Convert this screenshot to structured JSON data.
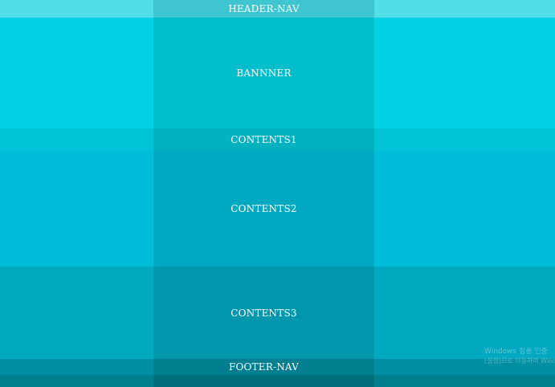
{
  "sections": {
    "header_nav": {
      "label": "HEADER-NAV"
    },
    "banner": {
      "label": "BANNNER"
    },
    "contents1": {
      "label": "CONTENTS1"
    },
    "contents2": {
      "label": "CONTENTS2"
    },
    "contents3": {
      "label": "CONTENTS3"
    },
    "footer_nav": {
      "label": "FOOTER-NAV"
    }
  },
  "watermark": {
    "line1": "Windows 정품 인증",
    "line2": "[설정]으로 이동하여 Windows를 정품 인증합니다."
  }
}
